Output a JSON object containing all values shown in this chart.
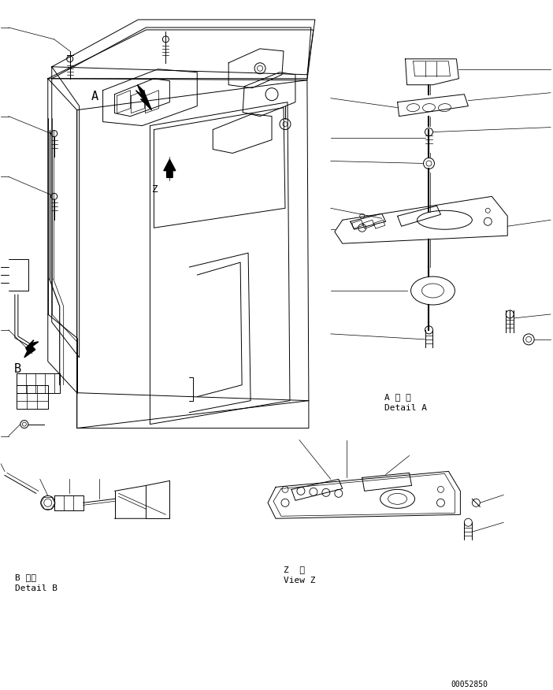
{
  "bg_color": "#ffffff",
  "line_color": "#000000",
  "page_code": "00052850",
  "detail_a_label_jp": "A 詳 細",
  "detail_a_label_en": "Detail A",
  "detail_b_label_jp": "B 詳細",
  "detail_b_label_en": "Detail B",
  "view_z_label_jp": "Z  視",
  "view_z_label_en": "View Z",
  "label_A": "A",
  "label_B": "B",
  "label_Z": "Z",
  "font_size_small": 7,
  "font_size_medium": 8,
  "font_size_large": 10
}
